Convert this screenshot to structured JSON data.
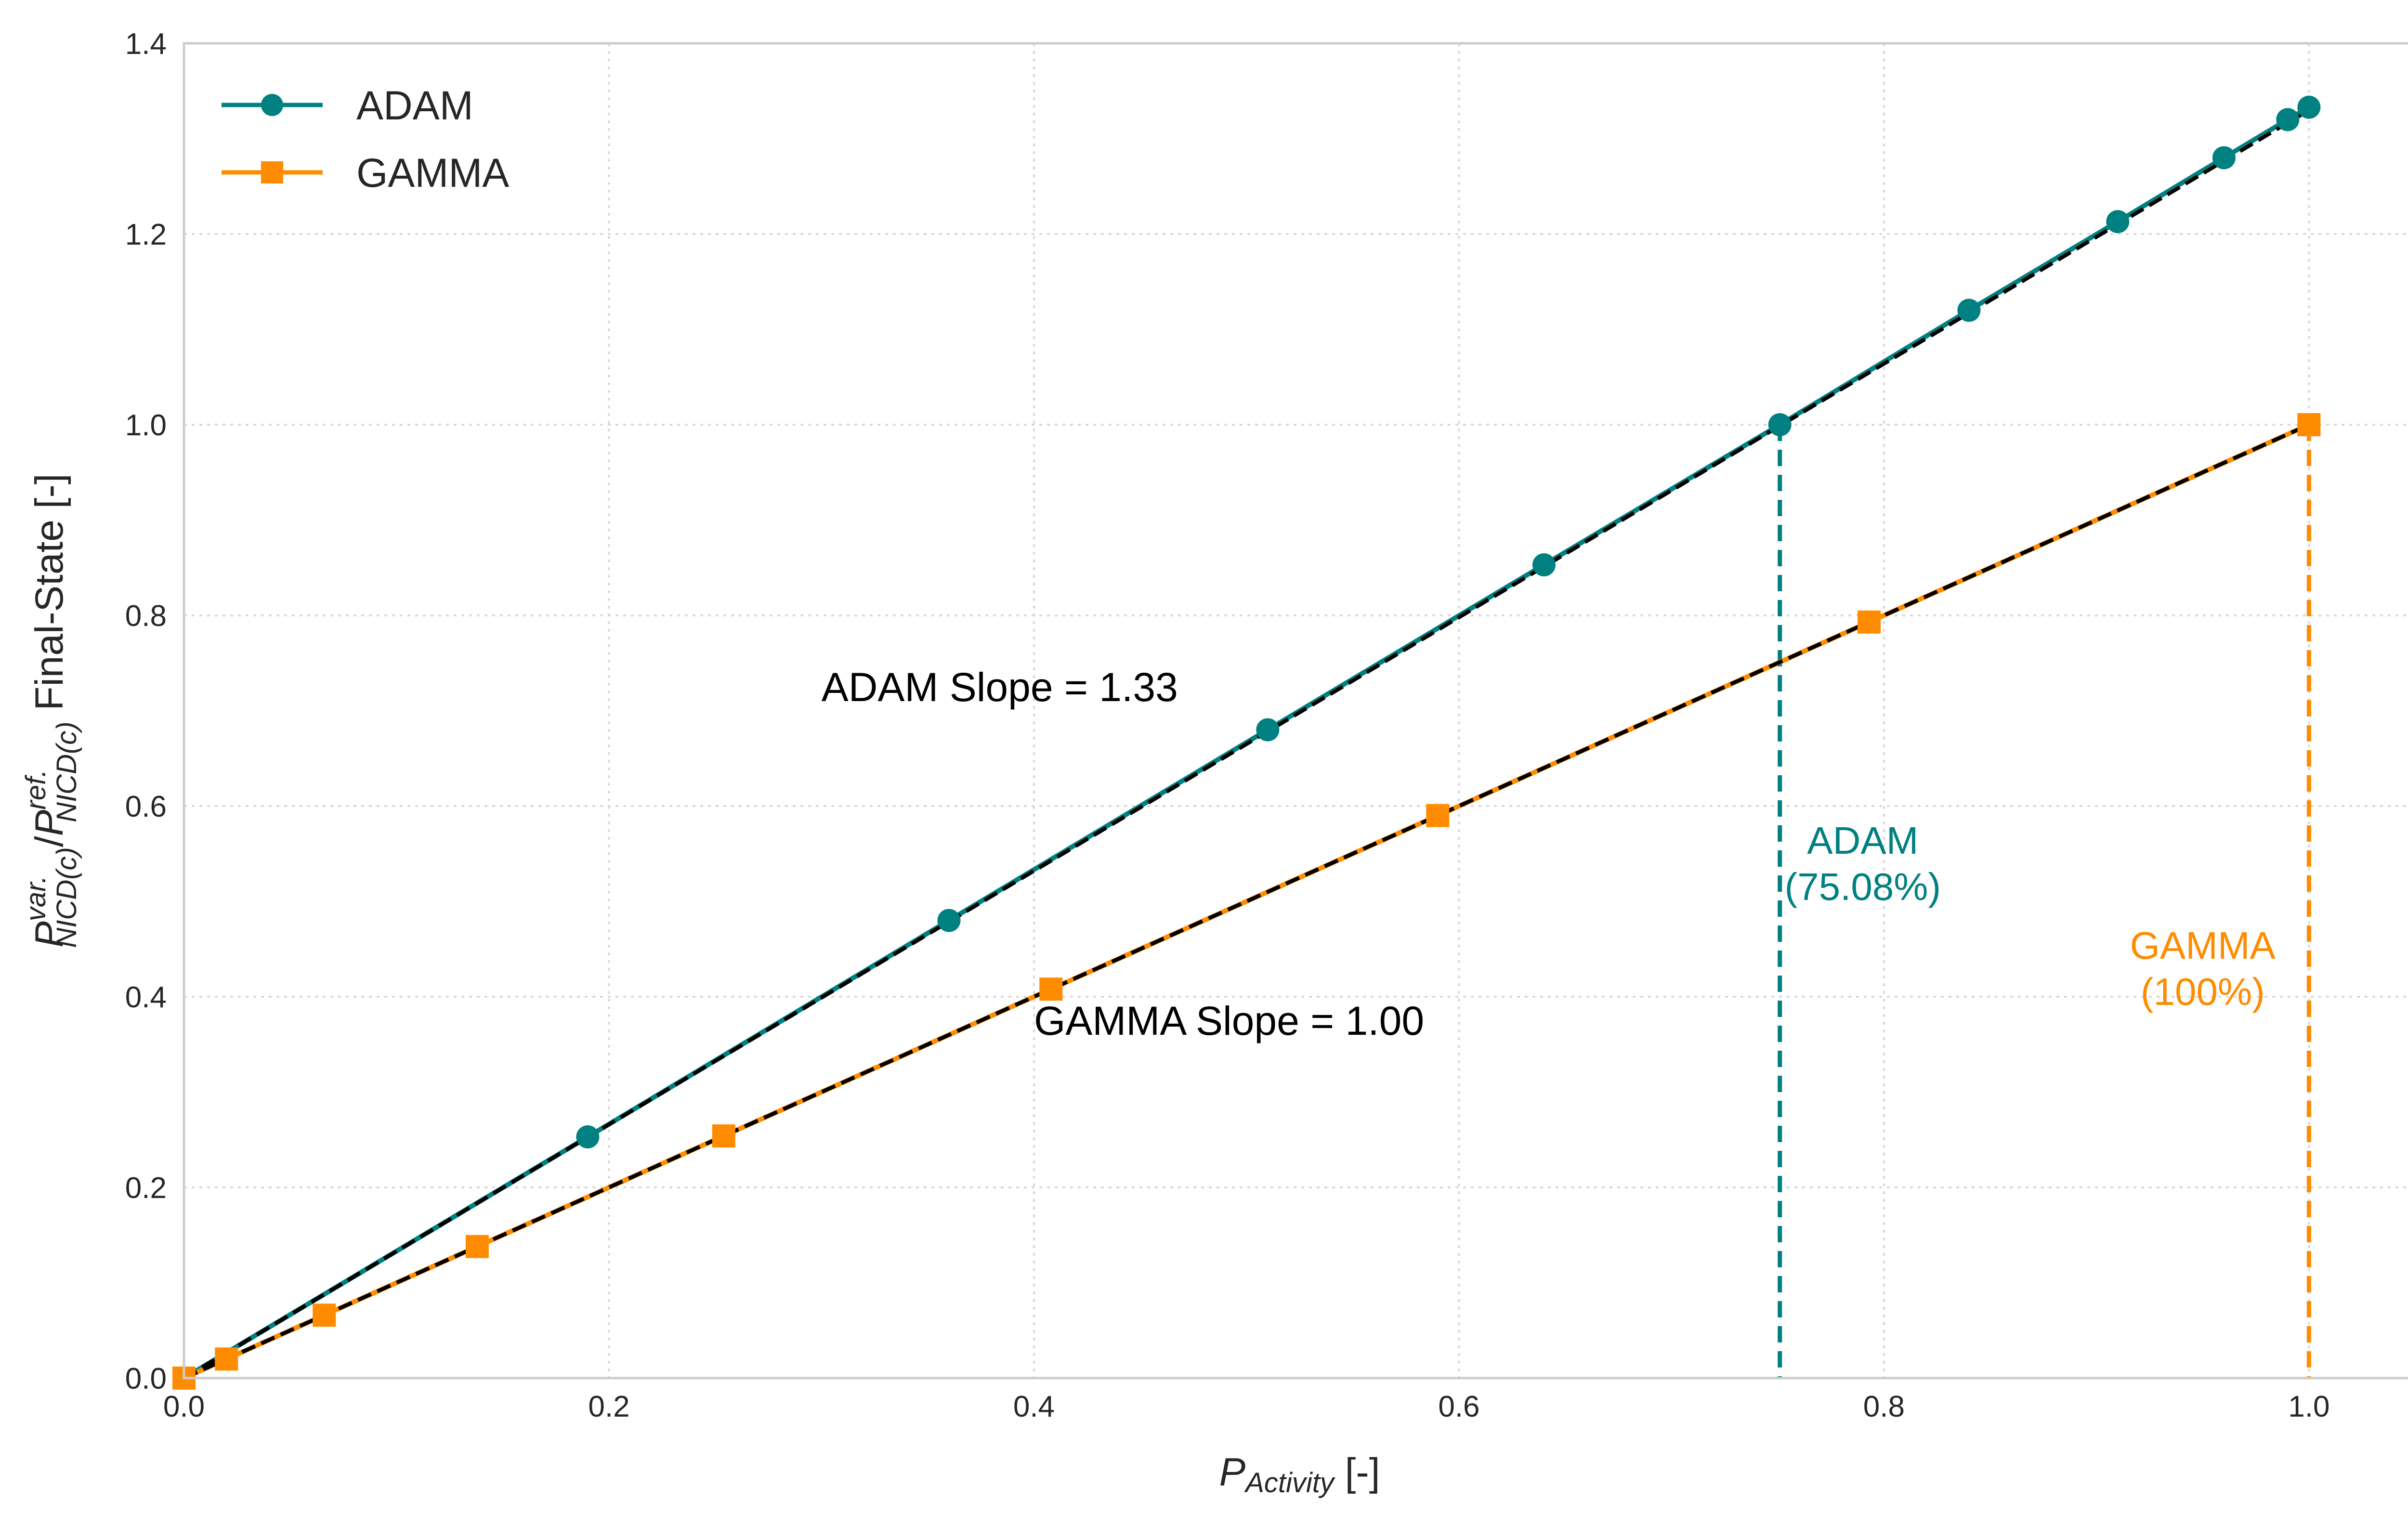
{
  "chart_data": {
    "type": "line",
    "xlabel": {
      "main": "P",
      "sub": "Activity",
      "unit": " [-]"
    },
    "ylabel": {
      "p1": "P",
      "sup1": "var.",
      "sub1": "NICD(c)",
      "slash": "/",
      "p2": "P",
      "sup2": "ref.",
      "sub2": "NICD(c)",
      "tail": "  Final-State [-]"
    },
    "xlim": [
      0.0,
      1.05
    ],
    "ylim": [
      0.0,
      1.4
    ],
    "xticks": [
      0.0,
      0.2,
      0.4,
      0.6,
      0.8,
      1.0
    ],
    "xtick_labels": [
      "0.0",
      "0.2",
      "0.4",
      "0.6",
      "0.8",
      "1.0"
    ],
    "yticks": [
      0.0,
      0.2,
      0.4,
      0.6,
      0.8,
      1.0,
      1.2,
      1.4
    ],
    "ytick_labels": [
      "0.0",
      "0.2",
      "0.4",
      "0.6",
      "0.8",
      "1.0",
      "1.2",
      "1.4"
    ],
    "grid": true,
    "legend_position": "top-left",
    "series": [
      {
        "name": "ADAM",
        "color": "#008080",
        "marker": "circle",
        "x": [
          0.0,
          0.19,
          0.36,
          0.51,
          0.64,
          0.751,
          0.84,
          0.91,
          0.96,
          0.99,
          1.0
        ],
        "y": [
          0.0,
          0.253,
          0.48,
          0.68,
          0.853,
          1.0,
          1.12,
          1.213,
          1.28,
          1.32,
          1.333
        ]
      },
      {
        "name": "GAMMA",
        "color": "#FF8C00",
        "marker": "square",
        "x": [
          0.0,
          0.02,
          0.066,
          0.138,
          0.254,
          0.408,
          0.59,
          0.793,
          1.0
        ],
        "y": [
          0.0,
          0.02,
          0.066,
          0.138,
          0.254,
          0.408,
          0.59,
          0.793,
          1.0
        ]
      }
    ],
    "fit_lines": [
      {
        "slope": 1.33,
        "x": [
          0.0,
          1.0
        ],
        "color": "#000000"
      },
      {
        "slope": 1.0,
        "x": [
          0.0,
          1.0
        ],
        "color": "#000000"
      }
    ],
    "vlines": [
      {
        "x": 0.751,
        "y_top": 1.0,
        "color": "#008080",
        "label_lines": [
          "ADAM",
          "(75.08%)"
        ],
        "label_x": 0.79,
        "label_y": 0.55
      },
      {
        "x": 1.0,
        "y_top": 1.0,
        "color": "#FF8C00",
        "label_lines": [
          "GAMMA",
          "(100%)"
        ],
        "label_x": 0.95,
        "label_y": 0.44
      }
    ],
    "annotations": [
      {
        "text": "ADAM Slope = 1.33",
        "x": 0.3,
        "y": 0.71,
        "anchor": "start"
      },
      {
        "text": "GAMMA Slope = 1.00",
        "x": 0.4,
        "y": 0.36,
        "anchor": "start"
      }
    ]
  }
}
